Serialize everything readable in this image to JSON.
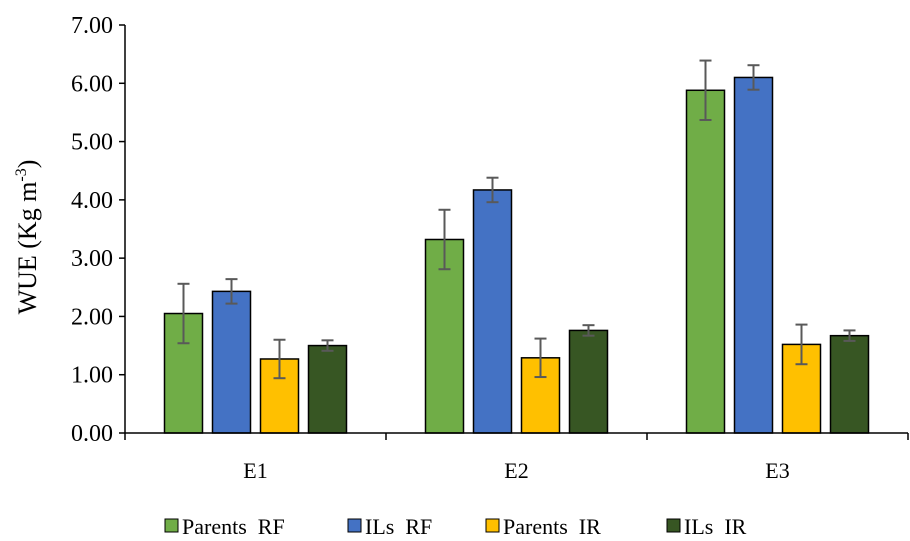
{
  "chart_data": {
    "type": "bar",
    "ylabel": "WUE (Kg m",
    "ylabel_superscript": "-3",
    "ylabel_suffix": ")",
    "ylim": [
      0,
      7
    ],
    "yticks": [
      "0.00",
      "1.00",
      "2.00",
      "3.00",
      "4.00",
      "5.00",
      "6.00",
      "7.00"
    ],
    "categories": [
      "E1",
      "E2",
      "E3"
    ],
    "series": [
      {
        "name": "Parents  RF",
        "color": "#70ad47",
        "values": [
          2.05,
          3.32,
          5.88
        ],
        "errors": [
          0.51,
          0.51,
          0.51
        ]
      },
      {
        "name": "ILs  RF",
        "color": "#4472c4",
        "values": [
          2.43,
          4.17,
          6.1
        ],
        "errors": [
          0.21,
          0.21,
          0.21
        ]
      },
      {
        "name": "Parents  IR",
        "color": "#ffc000",
        "values": [
          1.27,
          1.29,
          1.52
        ],
        "errors": [
          0.33,
          0.33,
          0.34
        ]
      },
      {
        "name": "ILs  IR",
        "color": "#375623",
        "values": [
          1.5,
          1.76,
          1.67
        ],
        "errors": [
          0.09,
          0.09,
          0.09
        ]
      }
    ],
    "legend_position": "bottom",
    "grid": false
  }
}
